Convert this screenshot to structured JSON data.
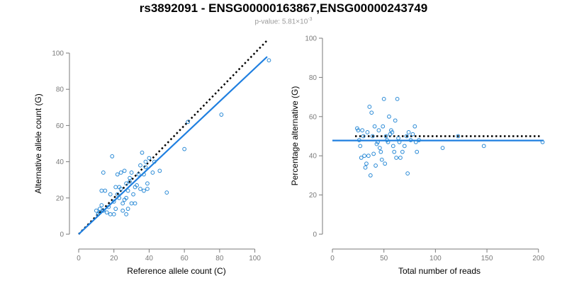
{
  "title": "rs3892091 - ENSG00000163867,ENSG00000243749",
  "subtitle": {
    "prefix": "p-value: 5.81×10",
    "exponent": "-3"
  },
  "colors": {
    "point": "#2a8ad6",
    "fit_line": "#1f7fe0",
    "reference_line": "#000000",
    "axis": "#7a7a7a"
  },
  "chart_data": [
    {
      "type": "scatter",
      "title": "",
      "xlabel": "Reference allele count (C)",
      "ylabel": "Alternative allele count (G)",
      "xlim": [
        0,
        105
      ],
      "ylim": [
        0,
        100
      ],
      "xticks": [
        0,
        20,
        40,
        60,
        80,
        100
      ],
      "yticks": [
        0,
        20,
        40,
        60,
        80,
        100
      ],
      "grid": false,
      "reference_line": {
        "style": "dotted",
        "from": [
          0,
          0
        ],
        "to": [
          107,
          107
        ]
      },
      "fit_line": {
        "from": [
          0,
          0
        ],
        "to": [
          107,
          98
        ]
      },
      "points": [
        [
          10,
          13
        ],
        [
          11,
          11
        ],
        [
          12,
          12
        ],
        [
          12,
          14
        ],
        [
          13,
          16
        ],
        [
          14,
          13
        ],
        [
          13,
          24
        ],
        [
          15,
          24
        ],
        [
          14,
          34
        ],
        [
          16,
          12
        ],
        [
          17,
          15
        ],
        [
          18,
          22
        ],
        [
          18,
          11
        ],
        [
          19,
          43
        ],
        [
          20,
          11
        ],
        [
          20,
          18
        ],
        [
          21,
          14
        ],
        [
          21,
          26
        ],
        [
          22,
          33
        ],
        [
          22,
          22
        ],
        [
          23,
          20
        ],
        [
          23,
          26
        ],
        [
          24,
          25
        ],
        [
          24,
          34
        ],
        [
          25,
          13
        ],
        [
          25,
          17
        ],
        [
          26,
          35
        ],
        [
          26,
          19
        ],
        [
          27,
          28
        ],
        [
          27,
          20
        ],
        [
          27,
          11
        ],
        [
          28,
          24
        ],
        [
          28,
          14
        ],
        [
          29,
          29
        ],
        [
          29,
          31
        ],
        [
          30,
          17
        ],
        [
          30,
          34
        ],
        [
          31,
          22
        ],
        [
          32,
          26
        ],
        [
          32,
          17
        ],
        [
          33,
          27
        ],
        [
          34,
          33
        ],
        [
          35,
          38
        ],
        [
          35,
          25
        ],
        [
          36,
          45
        ],
        [
          37,
          33
        ],
        [
          37,
          24
        ],
        [
          38,
          40
        ],
        [
          38,
          37
        ],
        [
          39,
          28
        ],
        [
          39,
          25
        ],
        [
          40,
          42
        ],
        [
          42,
          34
        ],
        [
          43,
          40
        ],
        [
          46,
          35
        ],
        [
          50,
          23
        ],
        [
          60,
          47
        ],
        [
          62,
          62
        ],
        [
          81,
          66
        ],
        [
          108,
          96
        ]
      ]
    },
    {
      "type": "scatter",
      "title": "",
      "xlabel": "Total number of reads",
      "ylabel": "Percentage alternative (G)",
      "xlim": [
        0,
        205
      ],
      "ylim": [
        0,
        100
      ],
      "xticks": [
        0,
        50,
        100,
        150,
        200
      ],
      "yticks": [
        0,
        20,
        40,
        60,
        80,
        100
      ],
      "grid": false,
      "reference_line": {
        "style": "dotted",
        "y": 50
      },
      "fit_line": {
        "y": 47.8
      },
      "points": [
        [
          24,
          54
        ],
        [
          25,
          53
        ],
        [
          26,
          48
        ],
        [
          27,
          45
        ],
        [
          28,
          39
        ],
        [
          29,
          53
        ],
        [
          30,
          50
        ],
        [
          31,
          40
        ],
        [
          32,
          34
        ],
        [
          33,
          36
        ],
        [
          34,
          52
        ],
        [
          35,
          40
        ],
        [
          36,
          65
        ],
        [
          37,
          30
        ],
        [
          38,
          62
        ],
        [
          39,
          50
        ],
        [
          40,
          41
        ],
        [
          41,
          55
        ],
        [
          42,
          35
        ],
        [
          43,
          46
        ],
        [
          44,
          47
        ],
        [
          45,
          53
        ],
        [
          46,
          44
        ],
        [
          47,
          42
        ],
        [
          48,
          38
        ],
        [
          49,
          55
        ],
        [
          50,
          69
        ],
        [
          51,
          36
        ],
        [
          52,
          50
        ],
        [
          53,
          48
        ],
        [
          54,
          47
        ],
        [
          55,
          60
        ],
        [
          56,
          51
        ],
        [
          57,
          53
        ],
        [
          58,
          52
        ],
        [
          59,
          45
        ],
        [
          60,
          42
        ],
        [
          61,
          58
        ],
        [
          62,
          39
        ],
        [
          63,
          69
        ],
        [
          64,
          49
        ],
        [
          65,
          47
        ],
        [
          66,
          39
        ],
        [
          68,
          42
        ],
        [
          70,
          45
        ],
        [
          72,
          50
        ],
        [
          73,
          31
        ],
        [
          74,
          52
        ],
        [
          76,
          48
        ],
        [
          78,
          51
        ],
        [
          80,
          55
        ],
        [
          81,
          47
        ],
        [
          82,
          42
        ],
        [
          84,
          48
        ],
        [
          107,
          44
        ],
        [
          122,
          50
        ],
        [
          147,
          45
        ],
        [
          204,
          47
        ]
      ]
    }
  ]
}
